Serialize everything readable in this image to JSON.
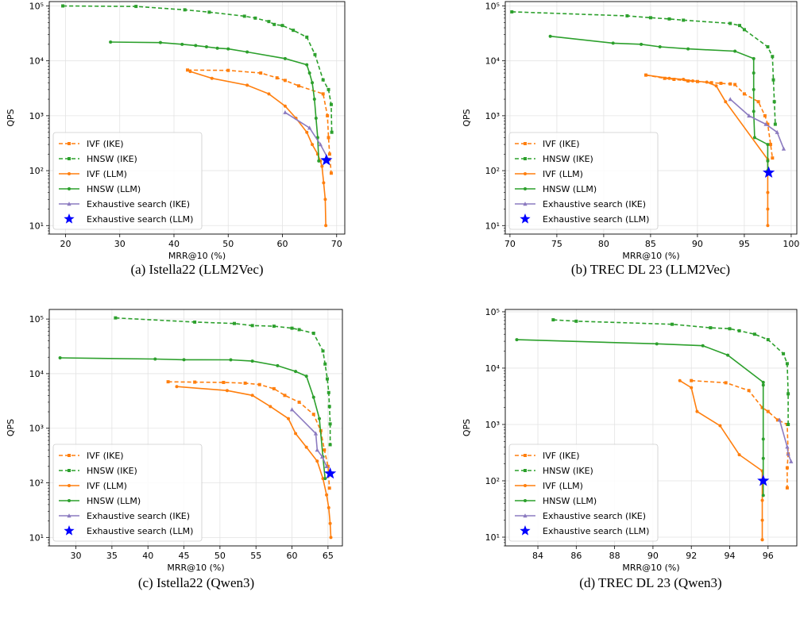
{
  "chart_data": [
    {
      "type": "line",
      "caption": "(a) Istella22 (LLM2Vec)",
      "xlabel": "MRR@10 (%)",
      "ylabel": "QPS",
      "yscale": "log",
      "xlim": [
        17,
        71.5
      ],
      "ylim": [
        7,
        120000
      ],
      "xticks": [
        20,
        30,
        40,
        50,
        60,
        70
      ],
      "xtick_labels": [
        "20",
        "30",
        "40",
        "50",
        "60",
        "70"
      ],
      "yticks": [
        10,
        100,
        1000,
        10000,
        100000
      ],
      "ytick_labels": [
        "10¹",
        "10²",
        "10³",
        "10⁴",
        "10⁵"
      ],
      "grid": true,
      "legend_position": "lower-left",
      "series": [
        {
          "name": "IVF (IKE)",
          "color": "#ff7f0e",
          "style": "dashed",
          "marker": "square",
          "x": [
            42.5,
            50,
            56,
            59,
            60.5,
            63,
            67.5,
            68.3,
            68.5,
            68.7,
            69
          ],
          "y": [
            6800,
            6700,
            6000,
            4900,
            4400,
            3500,
            2500,
            1000,
            400,
            200,
            90
          ]
        },
        {
          "name": "HNSW (IKE)",
          "color": "#2ca02c",
          "style": "dashed",
          "marker": "square",
          "x": [
            19.5,
            33,
            42,
            46.5,
            53,
            55,
            57.5,
            58.5,
            60,
            62,
            64.5,
            66,
            67.5,
            68.5,
            69,
            69.1
          ],
          "y": [
            100000,
            98000,
            85000,
            77000,
            65000,
            60000,
            52000,
            46000,
            44000,
            36000,
            27000,
            13000,
            4500,
            3000,
            1600,
            500
          ]
        },
        {
          "name": "IVF (LLM)",
          "color": "#ff7f0e",
          "style": "solid",
          "marker": "circle",
          "x": [
            43,
            47,
            53.5,
            57.5,
            60.5,
            62.5,
            64.5,
            65.5,
            66.5,
            67,
            67.3,
            67.6,
            67.9,
            68
          ],
          "y": [
            6400,
            4800,
            3600,
            2500,
            1500,
            900,
            500,
            300,
            200,
            150,
            120,
            60,
            30,
            10
          ]
        },
        {
          "name": "HNSW (LLM)",
          "color": "#2ca02c",
          "style": "solid",
          "marker": "circle",
          "x": [
            28.3,
            37.5,
            41.5,
            44,
            46,
            48,
            50,
            53.5,
            60.5,
            64.5,
            65,
            65.5,
            65.9,
            66.2,
            66.5,
            66.7
          ],
          "y": [
            22000,
            21500,
            20000,
            19000,
            18000,
            17000,
            16500,
            14500,
            11000,
            8500,
            6000,
            4000,
            2000,
            900,
            400,
            150
          ]
        },
        {
          "name": "Exhaustive search (IKE)",
          "color": "#8c7bc0",
          "style": "solid",
          "marker": "triangle",
          "x": [
            60.5,
            65,
            67,
            68.5
          ],
          "y": [
            1150,
            600,
            300,
            160
          ]
        },
        {
          "name": "Exhaustive search (LLM)",
          "color": "#0000ff",
          "style": "none",
          "marker": "star",
          "x": [
            68.1
          ],
          "y": [
            155
          ]
        }
      ]
    },
    {
      "type": "line",
      "caption": "(b) TREC DL 23 (LLM2Vec)",
      "xlabel": "MRR@10 (%)",
      "ylabel": "QPS",
      "yscale": "log",
      "xlim": [
        69.5,
        100.6
      ],
      "ylim": [
        7,
        120000
      ],
      "xticks": [
        70,
        75,
        80,
        85,
        90,
        95,
        100
      ],
      "xtick_labels": [
        "70",
        "75",
        "80",
        "85",
        "90",
        "95",
        "100"
      ],
      "yticks": [
        10,
        100,
        1000,
        10000,
        100000
      ],
      "ytick_labels": [
        "10¹",
        "10²",
        "10³",
        "10⁴",
        "10⁵"
      ],
      "grid": true,
      "legend_position": "lower-left",
      "series": [
        {
          "name": "IVF (IKE)",
          "color": "#ff7f0e",
          "style": "dashed",
          "marker": "square",
          "x": [
            84.5,
            86.5,
            87.5,
            89,
            90,
            91.5,
            92.5,
            93.5,
            94,
            95,
            96.5,
            97.2,
            97.5,
            97.8,
            98
          ],
          "y": [
            5500,
            4800,
            4600,
            4300,
            4200,
            4000,
            3900,
            3800,
            3700,
            2500,
            1800,
            1000,
            700,
            300,
            170
          ]
        },
        {
          "name": "HNSW (IKE)",
          "color": "#2ca02c",
          "style": "dashed",
          "marker": "square",
          "x": [
            70.2,
            82.5,
            85,
            87,
            88.5,
            93.5,
            94.5,
            95,
            97.5,
            98,
            98.1,
            98.2,
            98.3
          ],
          "y": [
            78000,
            66000,
            61000,
            58000,
            55000,
            48000,
            44000,
            37000,
            18000,
            12000,
            4500,
            1800,
            700
          ]
        },
        {
          "name": "IVF (LLM)",
          "color": "#ff7f0e",
          "style": "solid",
          "marker": "circle",
          "x": [
            84.5,
            87,
            88.5,
            89.5,
            91,
            92,
            93,
            97.5,
            97.5,
            97.5,
            97.5,
            97.5
          ],
          "y": [
            5500,
            4800,
            4600,
            4300,
            4100,
            3500,
            1800,
            160,
            100,
            40,
            20,
            10
          ]
        },
        {
          "name": "HNSW (LLM)",
          "color": "#2ca02c",
          "style": "solid",
          "marker": "circle",
          "x": [
            74.3,
            81,
            84,
            86,
            89,
            94,
            96,
            96,
            96,
            96,
            96.1,
            97.5,
            97.5,
            97.5
          ],
          "y": [
            28000,
            21000,
            20000,
            18000,
            16500,
            15000,
            11000,
            6000,
            3000,
            1200,
            400,
            300,
            150,
            100
          ]
        },
        {
          "name": "Exhaustive search (IKE)",
          "color": "#8c7bc0",
          "style": "solid",
          "marker": "triangle",
          "x": [
            93.5,
            95.5,
            97.3,
            98.5,
            99.2
          ],
          "y": [
            2000,
            1000,
            700,
            500,
            250
          ]
        },
        {
          "name": "Exhaustive search (LLM)",
          "color": "#0000ff",
          "style": "none",
          "marker": "star",
          "x": [
            97.6
          ],
          "y": [
            92
          ]
        }
      ]
    },
    {
      "type": "line",
      "caption": "(c) Istella22 (Qwen3)",
      "xlabel": "MRR@10 (%)",
      "ylabel": "QPS",
      "yscale": "log",
      "xlim": [
        26.3,
        67
      ],
      "ylim": [
        7,
        150000
      ],
      "xticks": [
        30,
        35,
        40,
        45,
        50,
        55,
        60,
        65
      ],
      "xtick_labels": [
        "30",
        "35",
        "40",
        "45",
        "50",
        "55",
        "60",
        "65"
      ],
      "yticks": [
        10,
        100,
        1000,
        10000,
        100000
      ],
      "ytick_labels": [
        "10¹",
        "10²",
        "10³",
        "10⁴",
        "10⁵"
      ],
      "grid": true,
      "legend_position": "lower-left",
      "series": [
        {
          "name": "IVF (IKE)",
          "color": "#ff7f0e",
          "style": "dashed",
          "marker": "square",
          "x": [
            42.8,
            46.5,
            50.5,
            53.5,
            55.5,
            57.5,
            59,
            61,
            63,
            64,
            64.5,
            65,
            65.2
          ],
          "y": [
            7100,
            7000,
            6900,
            6700,
            6300,
            5300,
            4000,
            3000,
            1800,
            900,
            400,
            200,
            80
          ]
        },
        {
          "name": "HNSW (IKE)",
          "color": "#2ca02c",
          "style": "dashed",
          "marker": "square",
          "x": [
            35.5,
            46.5,
            52,
            54.5,
            57.5,
            60,
            61,
            63,
            64.3,
            64.6,
            64.9,
            65.1,
            65.2,
            65.3,
            65.3
          ],
          "y": [
            105000,
            88000,
            83000,
            76000,
            74000,
            68000,
            64000,
            55000,
            26000,
            15000,
            8000,
            4500,
            2500,
            1200,
            500
          ]
        },
        {
          "name": "IVF (LLM)",
          "color": "#ff7f0e",
          "style": "solid",
          "marker": "circle",
          "x": [
            44,
            51,
            54.5,
            57,
            59.5,
            60.5,
            62,
            63.5,
            64.3,
            64.8,
            65.1,
            65.3,
            65.4
          ],
          "y": [
            5800,
            4900,
            4000,
            2500,
            1500,
            800,
            450,
            250,
            120,
            60,
            35,
            18,
            10
          ]
        },
        {
          "name": "HNSW (LLM)",
          "color": "#2ca02c",
          "style": "solid",
          "marker": "circle",
          "x": [
            27.8,
            41,
            45,
            51.5,
            54.5,
            58,
            60.5,
            62,
            63,
            63.8,
            64.3,
            64.6
          ],
          "y": [
            19500,
            18500,
            18000,
            17900,
            17000,
            14000,
            11000,
            9000,
            3700,
            1500,
            300,
            120
          ]
        },
        {
          "name": "Exhaustive search (IKE)",
          "color": "#8c7bc0",
          "style": "solid",
          "marker": "triangle",
          "x": [
            60,
            63.3,
            63.5,
            64.2,
            64.8
          ],
          "y": [
            2200,
            800,
            400,
            300,
            200
          ]
        },
        {
          "name": "Exhaustive search (LLM)",
          "color": "#0000ff",
          "style": "none",
          "marker": "star",
          "x": [
            65.3
          ],
          "y": [
            148
          ]
        }
      ]
    },
    {
      "type": "line",
      "caption": "(d) TREC DL 23 (Qwen3)",
      "xlabel": "MRR@10 (%)",
      "ylabel": "QPS",
      "yscale": "log",
      "xlim": [
        82.3,
        97.5
      ],
      "ylim": [
        7,
        110000
      ],
      "xticks": [
        84,
        86,
        88,
        90,
        92,
        94,
        96
      ],
      "xtick_labels": [
        "84",
        "86",
        "88",
        "90",
        "92",
        "94",
        "96"
      ],
      "yticks": [
        10,
        100,
        1000,
        10000,
        100000
      ],
      "ytick_labels": [
        "10¹",
        "10²",
        "10³",
        "10⁴",
        "10⁵"
      ],
      "grid": true,
      "legend_position": "lower-left",
      "series": [
        {
          "name": "IVF (IKE)",
          "color": "#ff7f0e",
          "style": "dashed",
          "marker": "square",
          "x": [
            92,
            93.8,
            95,
            95.7,
            96,
            96.5,
            97,
            97.05,
            97,
            97
          ],
          "y": [
            6000,
            5500,
            4000,
            2000,
            1700,
            1200,
            1000,
            300,
            170,
            75
          ]
        },
        {
          "name": "HNSW (IKE)",
          "color": "#2ca02c",
          "style": "dashed",
          "marker": "square",
          "x": [
            84.8,
            86,
            91,
            93,
            94,
            94.5,
            95.3,
            96,
            96.8,
            97,
            97.05,
            97.05
          ],
          "y": [
            72000,
            68000,
            60000,
            52000,
            50000,
            46000,
            40000,
            32000,
            18000,
            12000,
            3500,
            1000
          ]
        },
        {
          "name": "IVF (LLM)",
          "color": "#ff7f0e",
          "style": "solid",
          "marker": "circle",
          "x": [
            91.4,
            92,
            92.3,
            93.5,
            94.5,
            95.7,
            95.7,
            95.7,
            95.7,
            95.7
          ],
          "y": [
            6000,
            4500,
            1700,
            950,
            290,
            150,
            45,
            20,
            9,
            9
          ]
        },
        {
          "name": "HNSW (LLM)",
          "color": "#2ca02c",
          "style": "solid",
          "marker": "circle",
          "x": [
            82.9,
            90.2,
            92.6,
            93.9,
            95.75,
            95.75,
            95.75,
            95.75,
            95.75,
            95.75
          ],
          "y": [
            32000,
            27000,
            25000,
            17000,
            5600,
            5000,
            550,
            250,
            100,
            55
          ]
        },
        {
          "name": "Exhaustive search (IKE)",
          "color": "#8c7bc0",
          "style": "solid",
          "marker": "triangle",
          "x": [
            96.6,
            97,
            97.05,
            97.2
          ],
          "y": [
            1200,
            400,
            300,
            220
          ]
        },
        {
          "name": "Exhaustive search (LLM)",
          "color": "#0000ff",
          "style": "none",
          "marker": "star",
          "x": [
            95.75
          ],
          "y": [
            100
          ]
        }
      ]
    }
  ]
}
